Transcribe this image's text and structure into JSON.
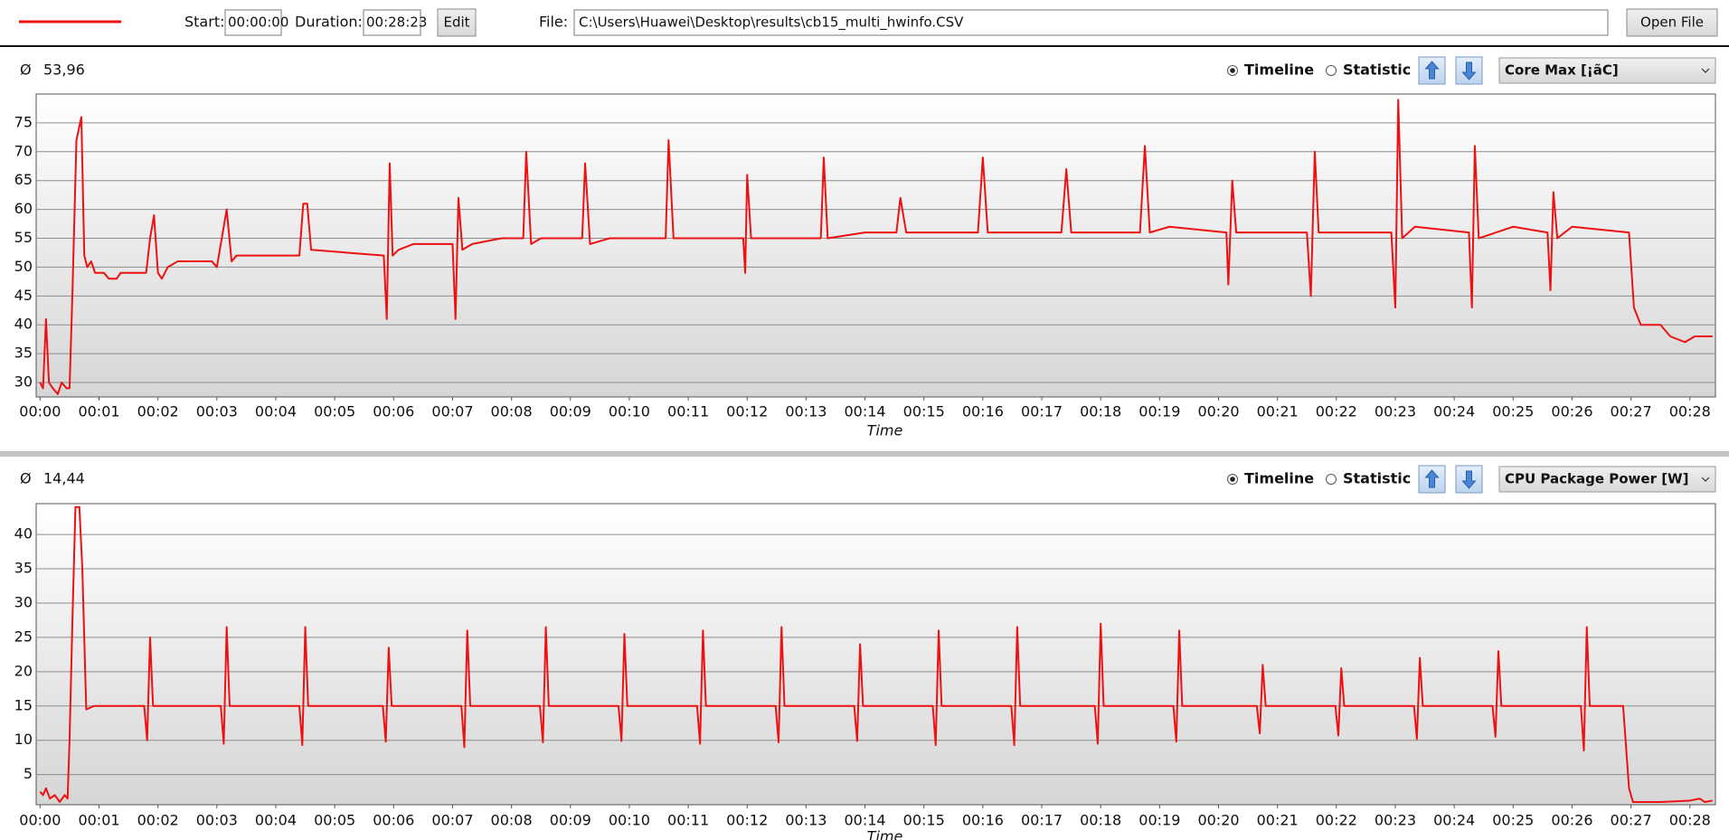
{
  "toolbar": {
    "start_label": "Start:",
    "start": "00:00:00",
    "duration_label": "Duration:",
    "duration": "00:28:23",
    "edit": "Edit",
    "file_label": "File:",
    "file": "C:\\Users\\Huawei\\Desktop\\results\\cb15_multi_hwinfo.CSV",
    "open": "Open File"
  },
  "chart_data": [
    {
      "type": "line",
      "average_symbol": "Ø",
      "average": "53,96",
      "view_options": [
        "Timeline",
        "Statistic"
      ],
      "selected_view": "Timeline",
      "sensor": "Core Max [¡ãC]",
      "xlabel": "Time",
      "color": "#ee1111",
      "grid": true,
      "x": [
        0,
        3,
        6,
        9,
        13,
        18,
        22,
        27,
        30,
        33,
        37,
        42,
        45,
        48,
        52,
        56,
        65,
        70,
        78,
        82,
        108,
        112,
        116,
        120,
        124,
        130,
        140,
        175,
        180,
        185,
        190,
        195,
        200,
        264,
        268,
        272,
        276,
        350,
        353,
        356,
        359,
        365,
        380,
        420,
        423,
        426,
        430,
        440,
        470,
        492,
        495,
        500,
        510,
        552,
        555,
        560,
        580,
        637,
        640,
        645,
        716,
        718,
        720,
        724,
        795,
        798,
        802,
        840,
        872,
        876,
        882,
        955,
        960,
        965,
        1040,
        1045,
        1050,
        1120,
        1125,
        1130,
        1150,
        1208,
        1210,
        1214,
        1218,
        1290,
        1294,
        1298,
        1302,
        1376,
        1380,
        1383,
        1387,
        1400,
        1455,
        1458,
        1461,
        1465,
        1500,
        1535,
        1538,
        1541,
        1545,
        1560,
        1618,
        1623,
        1630,
        1650,
        1660,
        1675,
        1685,
        1703
      ],
      "values": [
        30,
        29,
        41,
        30,
        29,
        28,
        30,
        29,
        29,
        46,
        72,
        76,
        52,
        50,
        51,
        49,
        49,
        48,
        48,
        49,
        49,
        55,
        59,
        49,
        48,
        50,
        51,
        51,
        50,
        55,
        60,
        51,
        52,
        52,
        61,
        61,
        53,
        52,
        41,
        68,
        52,
        53,
        54,
        54,
        41,
        62,
        53,
        54,
        55,
        55,
        70,
        54,
        55,
        55,
        68,
        54,
        55,
        55,
        72,
        55,
        55,
        49,
        66,
        55,
        55,
        69,
        55,
        56,
        56,
        62,
        56,
        56,
        69,
        56,
        56,
        67,
        56,
        56,
        71,
        56,
        57,
        56,
        47,
        65,
        56,
        56,
        45,
        70,
        56,
        56,
        43,
        79,
        55,
        57,
        56,
        43,
        71,
        55,
        57,
        56,
        46,
        63,
        55,
        57,
        56,
        43,
        40,
        40,
        38,
        37,
        38,
        38
      ],
      "xlim": [
        -4,
        1706
      ],
      "ylim": [
        27.5,
        80
      ],
      "yticks": [
        30,
        35,
        40,
        45,
        50,
        55,
        60,
        65,
        70,
        75
      ],
      "xticks": [
        {
          "value": 0,
          "label": "00:00"
        },
        {
          "value": 60,
          "label": "00:01"
        },
        {
          "value": 120,
          "label": "00:02"
        },
        {
          "value": 180,
          "label": "00:03"
        },
        {
          "value": 240,
          "label": "00:04"
        },
        {
          "value": 300,
          "label": "00:05"
        },
        {
          "value": 360,
          "label": "00:06"
        },
        {
          "value": 420,
          "label": "00:07"
        },
        {
          "value": 480,
          "label": "00:08"
        },
        {
          "value": 540,
          "label": "00:09"
        },
        {
          "value": 600,
          "label": "00:10"
        },
        {
          "value": 660,
          "label": "00:11"
        },
        {
          "value": 720,
          "label": "00:12"
        },
        {
          "value": 780,
          "label": "00:13"
        },
        {
          "value": 840,
          "label": "00:14"
        },
        {
          "value": 900,
          "label": "00:15"
        },
        {
          "value": 960,
          "label": "00:16"
        },
        {
          "value": 1020,
          "label": "00:17"
        },
        {
          "value": 1080,
          "label": "00:18"
        },
        {
          "value": 1140,
          "label": "00:19"
        },
        {
          "value": 1200,
          "label": "00:20"
        },
        {
          "value": 1260,
          "label": "00:21"
        },
        {
          "value": 1320,
          "label": "00:22"
        },
        {
          "value": 1380,
          "label": "00:23"
        },
        {
          "value": 1440,
          "label": "00:24"
        },
        {
          "value": 1500,
          "label": "00:25"
        },
        {
          "value": 1560,
          "label": "00:26"
        },
        {
          "value": 1620,
          "label": "00:27"
        },
        {
          "value": 1680,
          "label": "00:28"
        }
      ]
    },
    {
      "type": "line",
      "average_symbol": "Ø",
      "average": "14,44",
      "view_options": [
        "Timeline",
        "Statistic"
      ],
      "selected_view": "Timeline",
      "sensor": "CPU Package Power [W]",
      "xlabel": "Time",
      "color": "#ee1111",
      "grid": true,
      "x": [
        0,
        3,
        6,
        10,
        15,
        20,
        25,
        28,
        30,
        33,
        36,
        40,
        43,
        47,
        55,
        106,
        109,
        112,
        115,
        184,
        187,
        190,
        193,
        264,
        267,
        270,
        273,
        349,
        352,
        355,
        358,
        429,
        432,
        435,
        438,
        509,
        512,
        515,
        518,
        589,
        592,
        595,
        598,
        669,
        672,
        675,
        678,
        749,
        752,
        755,
        758,
        829,
        832,
        835,
        838,
        909,
        912,
        915,
        918,
        989,
        992,
        995,
        998,
        1074,
        1077,
        1080,
        1083,
        1154,
        1157,
        1160,
        1163,
        1239,
        1242,
        1245,
        1248,
        1319,
        1322,
        1325,
        1328,
        1399,
        1402,
        1405,
        1408,
        1479,
        1482,
        1485,
        1488,
        1569,
        1572,
        1575,
        1578,
        1612,
        1618,
        1622,
        1650,
        1680,
        1690,
        1695,
        1703
      ],
      "values": [
        2.5,
        2,
        3,
        1.5,
        2,
        1,
        2,
        1.5,
        10,
        28,
        44,
        44,
        35,
        14.5,
        15,
        15,
        10,
        25,
        15,
        15,
        9.5,
        26.5,
        15,
        15,
        9.3,
        26.5,
        15,
        15,
        9.8,
        23.5,
        15,
        15,
        9,
        26,
        15,
        15,
        9.7,
        26.5,
        15,
        15,
        9.9,
        25.5,
        15,
        15,
        9.5,
        26,
        15,
        15,
        9.7,
        26.5,
        15,
        15,
        9.9,
        24,
        15,
        15,
        9.3,
        26,
        15,
        15,
        9.3,
        26.5,
        15,
        15,
        9.5,
        27,
        15,
        15,
        9.8,
        26,
        15,
        15,
        11,
        21,
        15,
        15,
        10.7,
        20.5,
        15,
        15,
        10.2,
        22,
        15,
        15,
        10.5,
        23,
        15,
        15,
        8.5,
        26.5,
        15,
        15,
        3,
        1,
        1,
        1.2,
        1.5,
        1,
        1.2
      ],
      "xlim": [
        -4,
        1706
      ],
      "ylim": [
        0.6,
        44.5
      ],
      "yticks": [
        5,
        10,
        15,
        20,
        25,
        30,
        35,
        40
      ],
      "xticks": [
        {
          "value": 0,
          "label": "00:00"
        },
        {
          "value": 60,
          "label": "00:01"
        },
        {
          "value": 120,
          "label": "00:02"
        },
        {
          "value": 180,
          "label": "00:03"
        },
        {
          "value": 240,
          "label": "00:04"
        },
        {
          "value": 300,
          "label": "00:05"
        },
        {
          "value": 360,
          "label": "00:06"
        },
        {
          "value": 420,
          "label": "00:07"
        },
        {
          "value": 480,
          "label": "00:08"
        },
        {
          "value": 540,
          "label": "00:09"
        },
        {
          "value": 600,
          "label": "00:10"
        },
        {
          "value": 660,
          "label": "00:11"
        },
        {
          "value": 720,
          "label": "00:12"
        },
        {
          "value": 780,
          "label": "00:13"
        },
        {
          "value": 840,
          "label": "00:14"
        },
        {
          "value": 900,
          "label": "00:15"
        },
        {
          "value": 960,
          "label": "00:16"
        },
        {
          "value": 1020,
          "label": "00:17"
        },
        {
          "value": 1080,
          "label": "00:18"
        },
        {
          "value": 1140,
          "label": "00:19"
        },
        {
          "value": 1200,
          "label": "00:20"
        },
        {
          "value": 1260,
          "label": "00:21"
        },
        {
          "value": 1320,
          "label": "00:22"
        },
        {
          "value": 1380,
          "label": "00:23"
        },
        {
          "value": 1440,
          "label": "00:24"
        },
        {
          "value": 1500,
          "label": "00:25"
        },
        {
          "value": 1560,
          "label": "00:26"
        },
        {
          "value": 1620,
          "label": "00:27"
        },
        {
          "value": 1680,
          "label": "00:28"
        }
      ]
    }
  ]
}
